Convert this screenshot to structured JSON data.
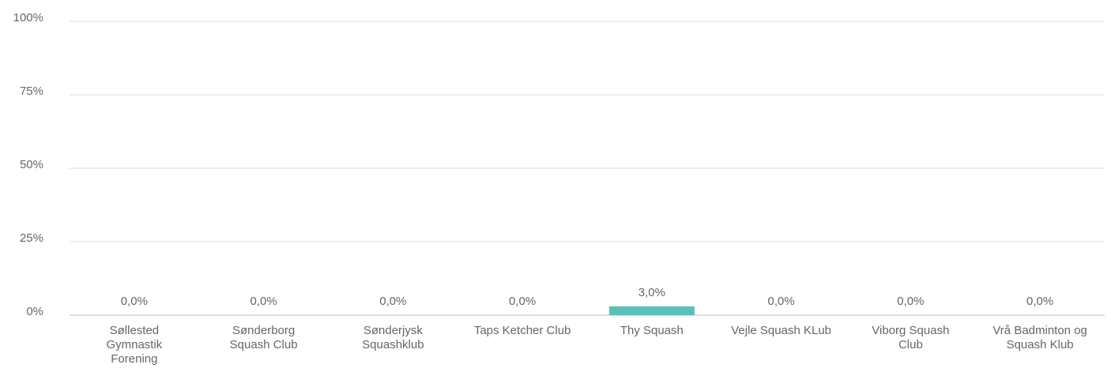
{
  "chart_data": {
    "type": "bar",
    "categories": [
      "Søllested Gymnastik Forening",
      "Sønderborg Squash Club",
      "Sønderjysk Squashklub",
      "Taps Ketcher Club",
      "Thy Squash",
      "Vejle Squash KLub",
      "Viborg Squash Club",
      "Vrå Badminton og Squash Klub"
    ],
    "values": [
      0,
      0,
      0,
      0,
      3,
      0,
      0,
      0
    ],
    "value_labels": [
      "0,0%",
      "0,0%",
      "0,0%",
      "0,0%",
      "3,0%",
      "0,0%",
      "0,0%",
      "0,0%"
    ],
    "color": "#5bc0b7",
    "ylim": [
      0,
      100
    ],
    "yticks": [
      {
        "value": 0,
        "label": "0%"
      },
      {
        "value": 25,
        "label": "25%"
      },
      {
        "value": 50,
        "label": "50%"
      },
      {
        "value": 75,
        "label": "75%"
      },
      {
        "value": 100,
        "label": "100%"
      }
    ],
    "grid": true
  }
}
